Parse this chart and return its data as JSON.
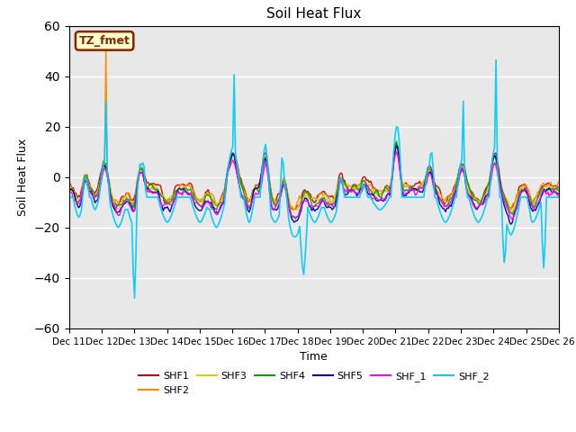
{
  "title": "Soil Heat Flux",
  "xlabel": "Time",
  "ylabel": "Soil Heat Flux",
  "ylim": [
    -60,
    60
  ],
  "yticks": [
    -60,
    -40,
    -20,
    0,
    20,
    40,
    60
  ],
  "legend_labels": [
    "SHF1",
    "SHF2",
    "SHF3",
    "SHF4",
    "SHF5",
    "SHF_1",
    "SHF_2"
  ],
  "legend_colors": [
    "#cc0000",
    "#ff8800",
    "#ddcc00",
    "#00aa00",
    "#000099",
    "#ff00ff",
    "#00ccff"
  ],
  "annotation_text": "TZ_fmet",
  "annotation_bg": "#ffffcc",
  "annotation_edge": "#882200",
  "bg_color": "#e8e8e8",
  "xtick_labels": [
    "Dec 11",
    "Dec 12",
    "Dec 13",
    "Dec 14",
    "Dec 15",
    "Dec 16",
    "Dec 17",
    "Dec 18",
    "Dec 19",
    "Dec 20",
    "Dec 21",
    "Dec 22",
    "Dec 23",
    "Dec 24",
    "Dec 25",
    "Dec 26"
  ]
}
